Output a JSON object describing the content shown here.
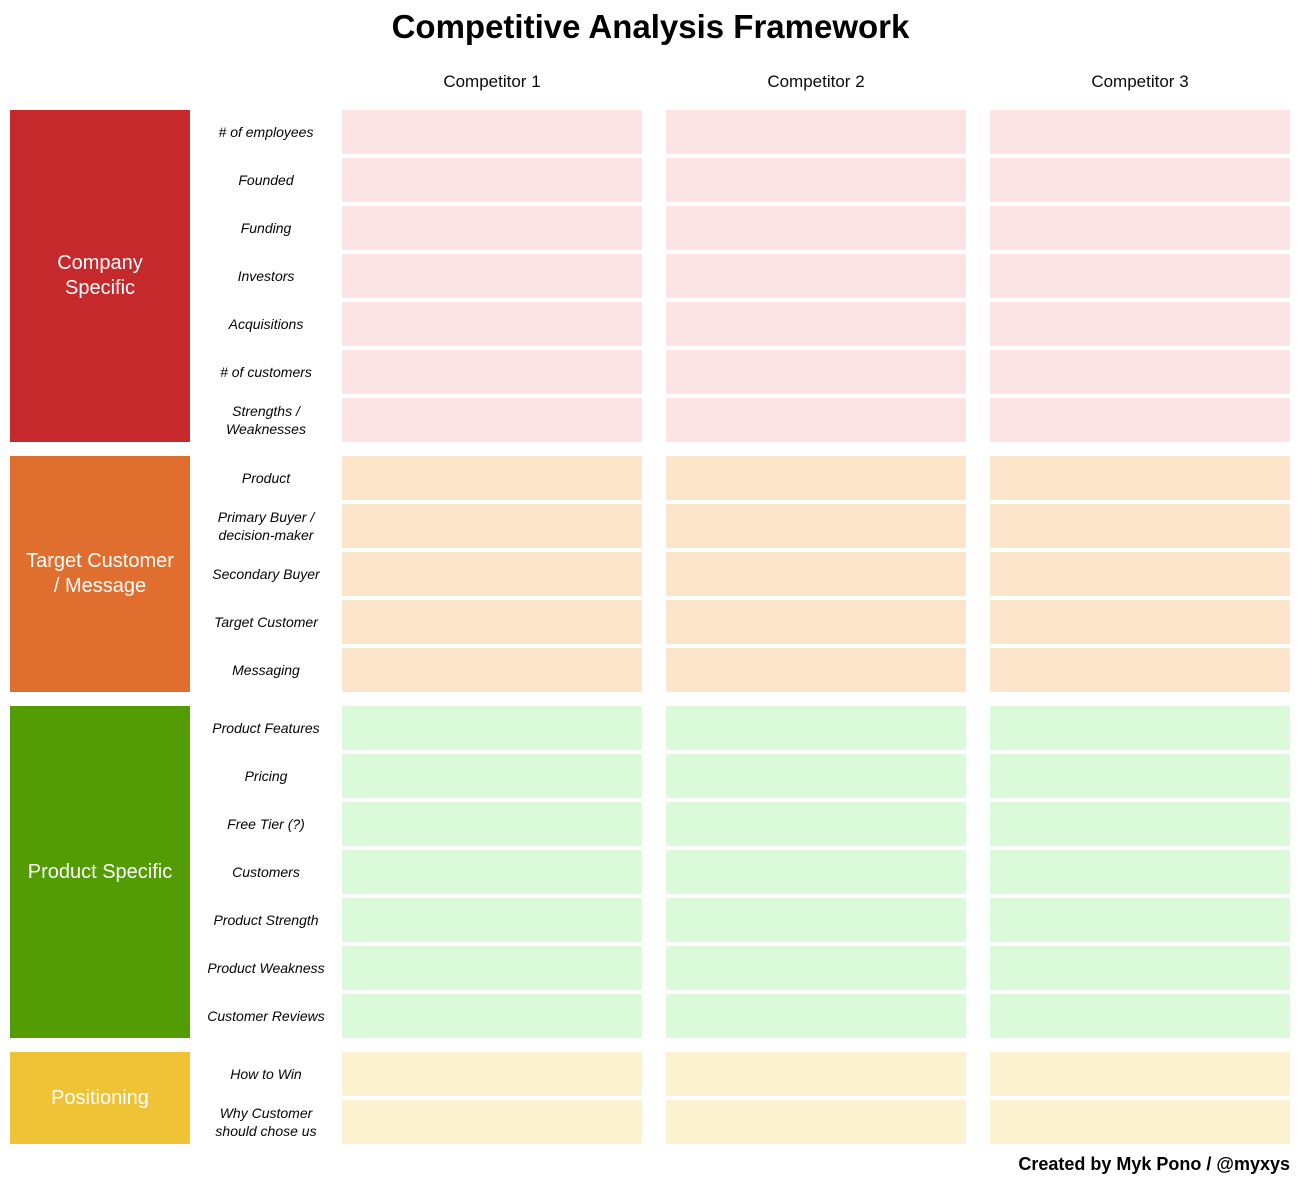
{
  "title": "Competitive Analysis Framework",
  "competitors": [
    {
      "label": "Competitor 1"
    },
    {
      "label": "Competitor 2"
    },
    {
      "label": "Competitor 3"
    }
  ],
  "sections": [
    {
      "label": "Company Specific",
      "block_color": "#c5292b",
      "cell_color": "#fce4e4",
      "rows": [
        "# of employees",
        "Founded",
        "Funding",
        "Investors",
        "Acquisitions",
        "# of customers",
        "Strengths / Weaknesses"
      ]
    },
    {
      "label": "Target Customer / Message",
      "block_color": "#e06e2e",
      "cell_color": "#fde5cb",
      "rows": [
        "Product",
        "Primary Buyer / decision-maker",
        "Secondary Buyer",
        "Target Customer",
        "Messaging"
      ]
    },
    {
      "label": "Product Specific",
      "block_color": "#539c04",
      "cell_color": "#dafad9",
      "rows": [
        "Product Features",
        "Pricing",
        "Free Tier (?)",
        "Customers",
        "Product Strength",
        "Product Weakness",
        "Customer Reviews"
      ]
    },
    {
      "label": "Positioning",
      "block_color": "#efc335",
      "cell_color": "#fdf2d0",
      "rows": [
        "How to Win",
        "Why Customer should chose us"
      ]
    }
  ],
  "footer": {
    "text": "Created by Myk Pono / @myxys"
  }
}
